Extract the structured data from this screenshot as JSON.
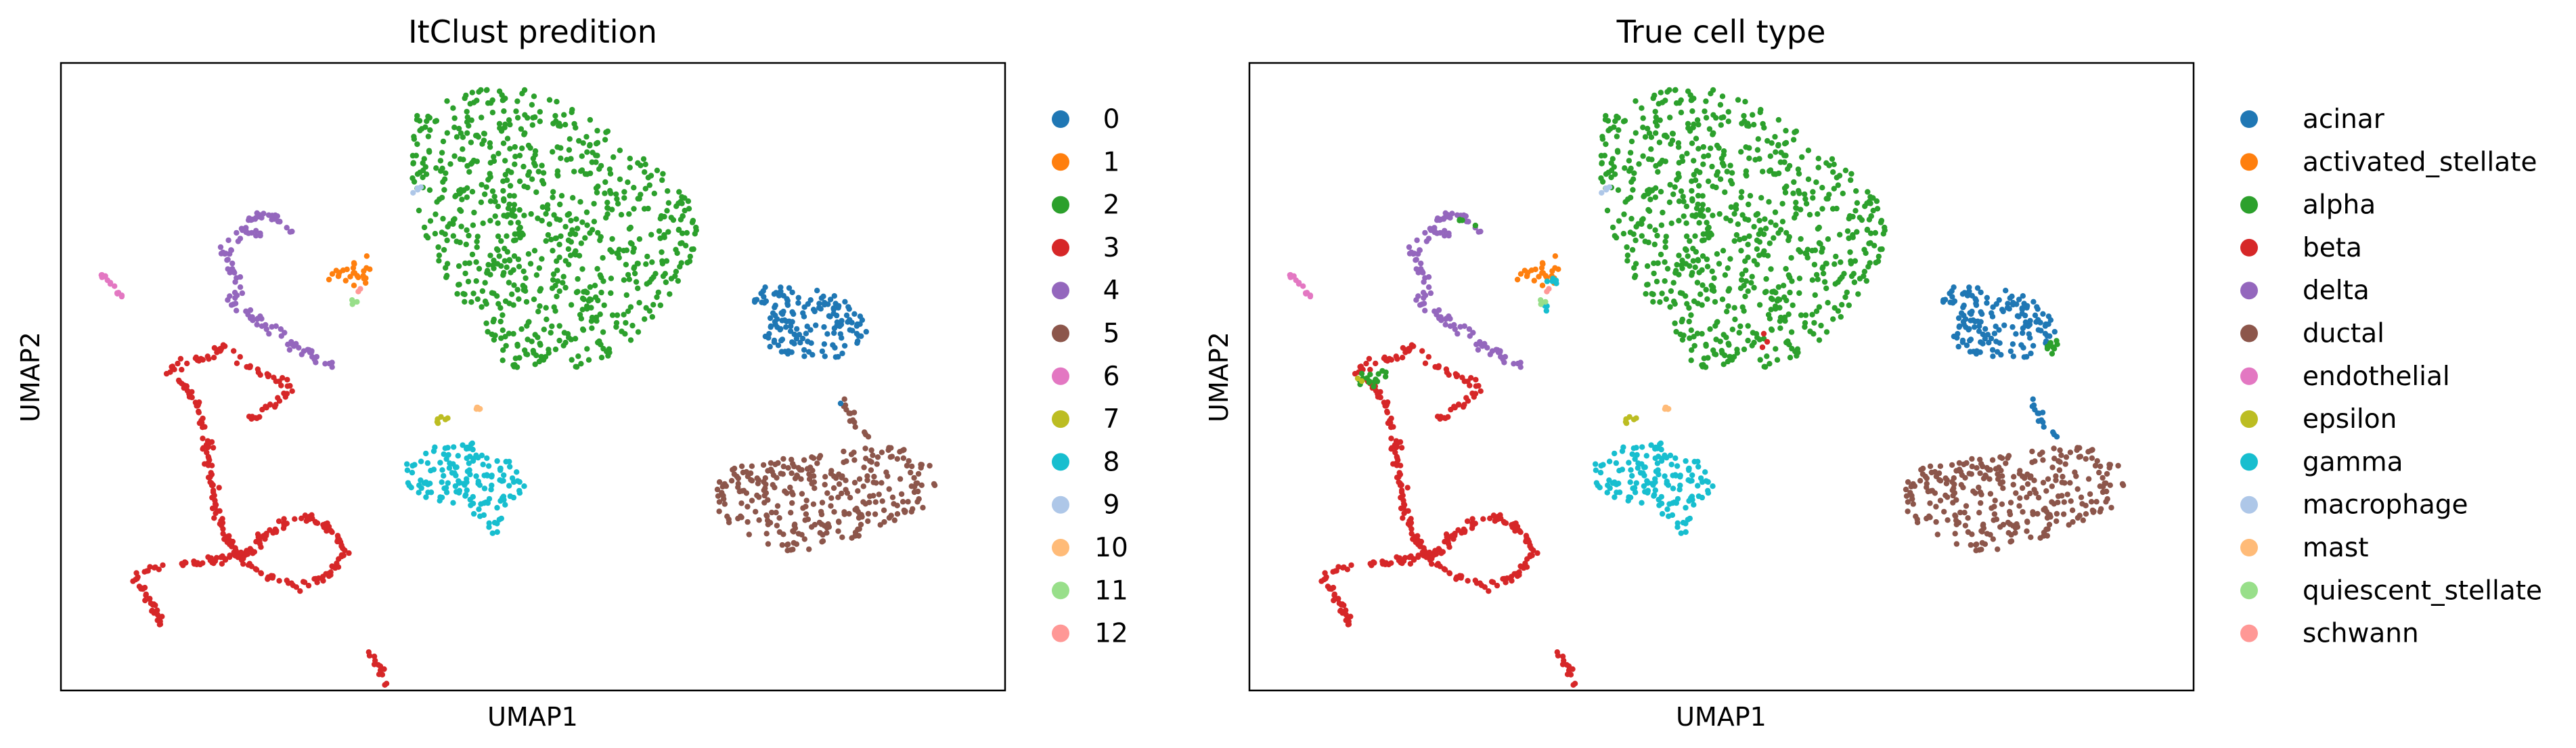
{
  "chart_data": [
    {
      "type": "scatter",
      "title": "ItClust predition",
      "xlabel": "UMAP1",
      "ylabel": "UMAP2",
      "xticks": "none",
      "yticks": "none",
      "grid": false,
      "legend_position": "right-outside",
      "legend": [
        {
          "label": "0",
          "color": "#1f77b4"
        },
        {
          "label": "1",
          "color": "#ff7f0e"
        },
        {
          "label": "2",
          "color": "#2ca02c"
        },
        {
          "label": "3",
          "color": "#d62728"
        },
        {
          "label": "4",
          "color": "#9467bd"
        },
        {
          "label": "5",
          "color": "#8c564b"
        },
        {
          "label": "6",
          "color": "#e377c2"
        },
        {
          "label": "7",
          "color": "#bcbd22"
        },
        {
          "label": "8",
          "color": "#17becf"
        },
        {
          "label": "9",
          "color": "#aec7e8"
        },
        {
          "label": "10",
          "color": "#ffbb78"
        },
        {
          "label": "11",
          "color": "#98df8a"
        },
        {
          "label": "12",
          "color": "#ff9896"
        }
      ]
    },
    {
      "type": "scatter",
      "title": "True cell type",
      "xlabel": "UMAP1",
      "ylabel": "UMAP2",
      "xticks": "none",
      "yticks": "none",
      "grid": false,
      "legend_position": "right-outside",
      "legend": [
        {
          "label": "acinar",
          "color": "#1f77b4"
        },
        {
          "label": "activated_stellate",
          "color": "#ff7f0e"
        },
        {
          "label": "alpha",
          "color": "#2ca02c"
        },
        {
          "label": "beta",
          "color": "#d62728"
        },
        {
          "label": "delta",
          "color": "#9467bd"
        },
        {
          "label": "ductal",
          "color": "#8c564b"
        },
        {
          "label": "endothelial",
          "color": "#e377c2"
        },
        {
          "label": "epsilon",
          "color": "#bcbd22"
        },
        {
          "label": "gamma",
          "color": "#17becf"
        },
        {
          "label": "macrophage",
          "color": "#aec7e8"
        },
        {
          "label": "mast",
          "color": "#ffbb78"
        },
        {
          "label": "quiescent_stellate",
          "color": "#98df8a"
        },
        {
          "label": "schwann",
          "color": "#ff9896"
        }
      ]
    }
  ]
}
